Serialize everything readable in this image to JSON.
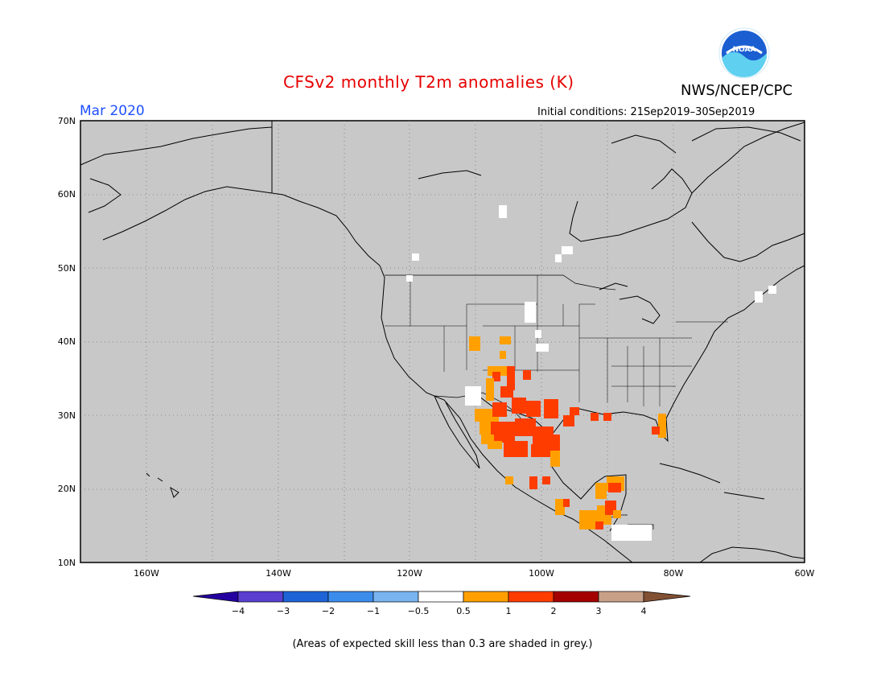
{
  "header": {
    "title": "CFSv2 monthly T2m anomalies (K)",
    "agency": "NWS/NCEP/CPC",
    "logo_text": "NOAA",
    "valid_month": "Mar 2020",
    "initial_conditions": "Initial conditions: 21Sep2019–30Sep2019"
  },
  "map": {
    "lon_range": [
      -170,
      -60
    ],
    "lat_range": [
      10,
      70
    ],
    "lat_labels": [
      "70N",
      "60N",
      "50N",
      "40N",
      "30N",
      "20N",
      "10N"
    ],
    "lon_labels": [
      "160W",
      "140W",
      "120W",
      "100W",
      "80W",
      "60W"
    ],
    "background": "#c8c8c8"
  },
  "colorbar": {
    "labels": [
      "−4",
      "−3",
      "−2",
      "−1",
      "−0.5",
      "0.5",
      "1",
      "2",
      "3",
      "4"
    ],
    "colors": [
      "#2400a0",
      "#5a3fd1",
      "#1e64d7",
      "#3c8ceb",
      "#78b4f0",
      "#ffffff",
      "#ffa000",
      "#ff3c00",
      "#a50000",
      "#c8a088",
      "#825032"
    ]
  },
  "footnote": "(Areas of expected skill less than 0.3 are shaded in grey.)"
}
